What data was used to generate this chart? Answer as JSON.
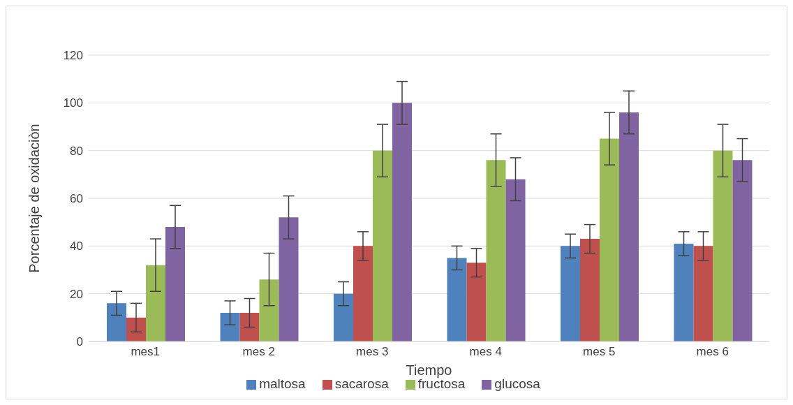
{
  "chart_data": {
    "type": "bar",
    "xlabel": "Tiempo",
    "ylabel": "Porcentaje de oxidaciòn",
    "categories": [
      "mes1",
      "mes 2",
      "mes 3",
      "mes 4",
      "mes 5",
      "mes 6"
    ],
    "series": [
      {
        "name": "maltosa",
        "color": "#4f81bd",
        "values": [
          16,
          12,
          20,
          35,
          40,
          41
        ],
        "errors": [
          5,
          5,
          5,
          5,
          5,
          5
        ]
      },
      {
        "name": "sacarosa",
        "color": "#c0504d",
        "values": [
          10,
          12,
          40,
          33,
          43,
          40
        ],
        "errors": [
          6,
          6,
          6,
          6,
          6,
          6
        ]
      },
      {
        "name": "fructosa",
        "color": "#9bbb59",
        "values": [
          32,
          26,
          80,
          76,
          85,
          80
        ],
        "errors": [
          11,
          11,
          11,
          11,
          11,
          11
        ]
      },
      {
        "name": "glucosa",
        "color": "#8064a2",
        "values": [
          48,
          52,
          100,
          68,
          96,
          76
        ],
        "errors": [
          9,
          9,
          9,
          9,
          9,
          9
        ]
      }
    ],
    "ylim": [
      0,
      120
    ],
    "yticks": [
      0,
      20,
      40,
      60,
      80,
      100,
      120
    ],
    "grid": "y",
    "legend": "bottom"
  }
}
